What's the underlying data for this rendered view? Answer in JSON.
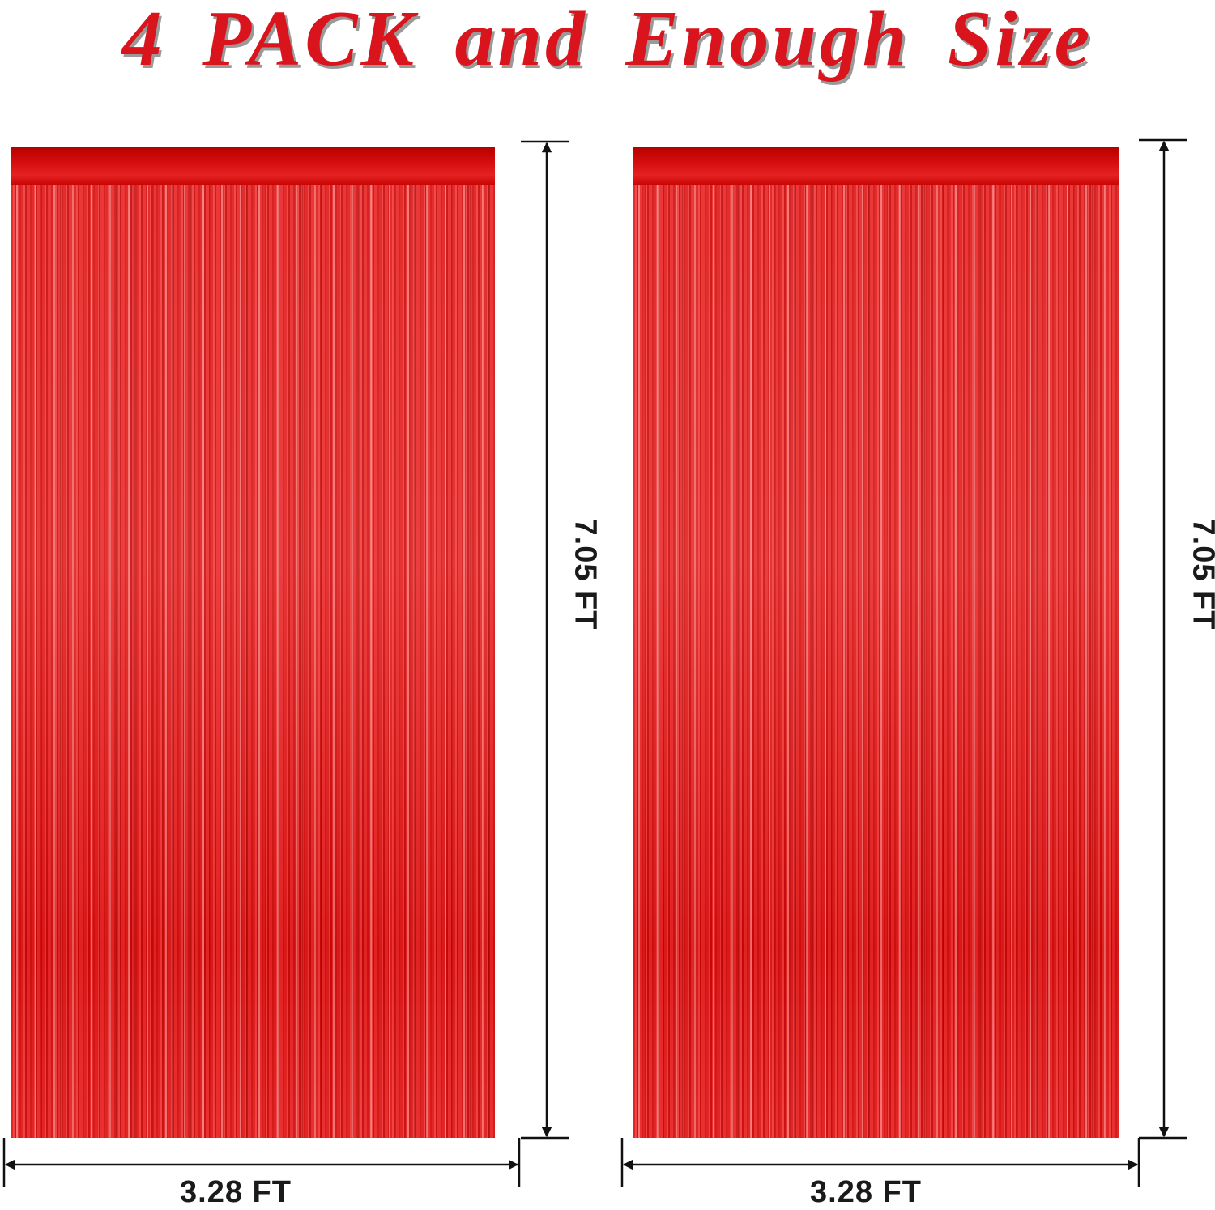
{
  "title": "4 PACK and Enough Size",
  "colors": {
    "title": "#d9141c",
    "curtain": "#e01818",
    "dimension_lines": "#111111"
  },
  "curtains": [
    {
      "height_label": "7.05 FT",
      "width_label": "3.28 FT"
    },
    {
      "height_label": "7.05 FT",
      "width_label": "3.28 FT"
    }
  ]
}
